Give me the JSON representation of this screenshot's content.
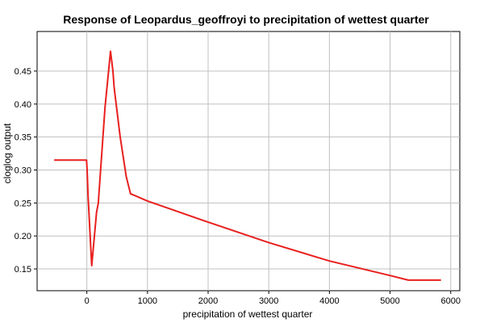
{
  "chart_data": {
    "type": "line",
    "title": "Response of Leopardus_geoffroyi to precipitation of wettest quarter",
    "xlabel": "precipitation of wettest quarter",
    "ylabel": "cloglog output",
    "xlim": [
      -820,
      6150
    ],
    "ylim": [
      0.117,
      0.51
    ],
    "x_ticks": [
      0,
      1000,
      2000,
      3000,
      4000,
      5000,
      6000
    ],
    "y_ticks": [
      0.15,
      0.2,
      0.25,
      0.3,
      0.35,
      0.4,
      0.45
    ],
    "x_tick_labels": [
      "0",
      "1000",
      "2000",
      "3000",
      "4000",
      "5000",
      "6000"
    ],
    "y_tick_labels": [
      "0.15",
      "0.20",
      "0.25",
      "0.30",
      "0.35",
      "0.40",
      "0.45"
    ],
    "grid": true,
    "legend": "none",
    "series": [
      {
        "color": "#e8201e",
        "x": [
          -530,
          -5,
          5,
          20,
          80,
          160,
          190,
          200,
          300,
          390,
          400,
          430,
          450,
          550,
          650,
          720,
          800,
          1000,
          2000,
          3000,
          4000,
          5000,
          5300,
          5830
        ],
        "y": [
          0.315,
          0.315,
          0.3,
          0.26,
          0.155,
          0.236,
          0.25,
          0.265,
          0.395,
          0.48,
          0.473,
          0.45,
          0.425,
          0.35,
          0.29,
          0.264,
          0.261,
          0.253,
          0.221,
          0.19,
          0.162,
          0.14,
          0.133,
          0.133
        ]
      }
    ]
  }
}
